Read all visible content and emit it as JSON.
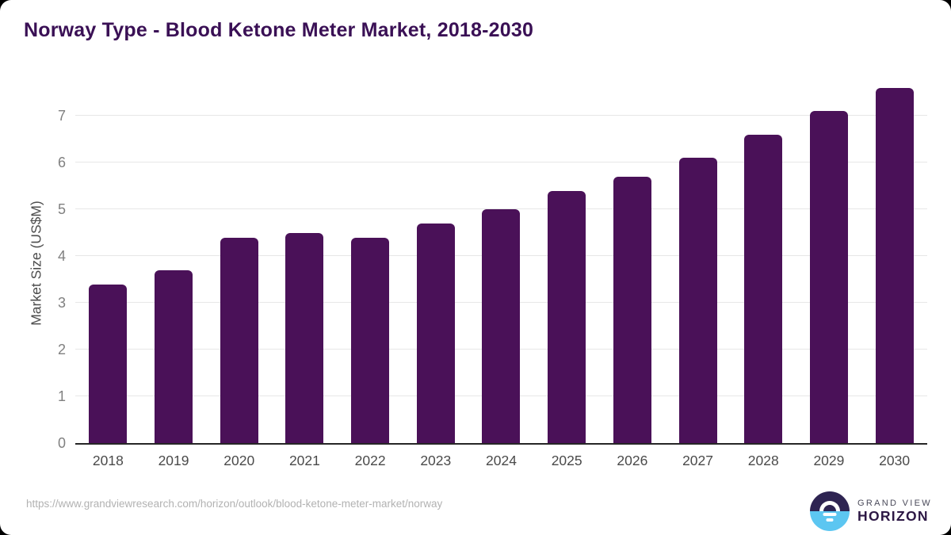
{
  "chart_data": {
    "type": "bar",
    "title": "Norway Type - Blood Ketone Meter Market, 2018-2030",
    "categories": [
      "2018",
      "2019",
      "2020",
      "2021",
      "2022",
      "2023",
      "2024",
      "2025",
      "2026",
      "2027",
      "2028",
      "2029",
      "2030"
    ],
    "values": [
      3.4,
      3.7,
      4.4,
      4.5,
      4.4,
      4.7,
      5.0,
      5.4,
      5.7,
      6.1,
      6.6,
      7.1,
      7.6
    ],
    "xlabel": "",
    "ylabel": "Market Size (US$M)",
    "yticks": [
      0,
      1,
      2,
      3,
      4,
      5,
      6,
      7
    ],
    "ylim": [
      0,
      7.8
    ],
    "grid": "horizontal",
    "legend": "none",
    "bar_color": "#4a1158"
  },
  "footer": {
    "source_url": "https://www.grandviewresearch.com/horizon/outlook/blood-ketone-meter-market/norway",
    "logo": {
      "line1": "GRAND VIEW",
      "line2": "HORIZON"
    }
  }
}
